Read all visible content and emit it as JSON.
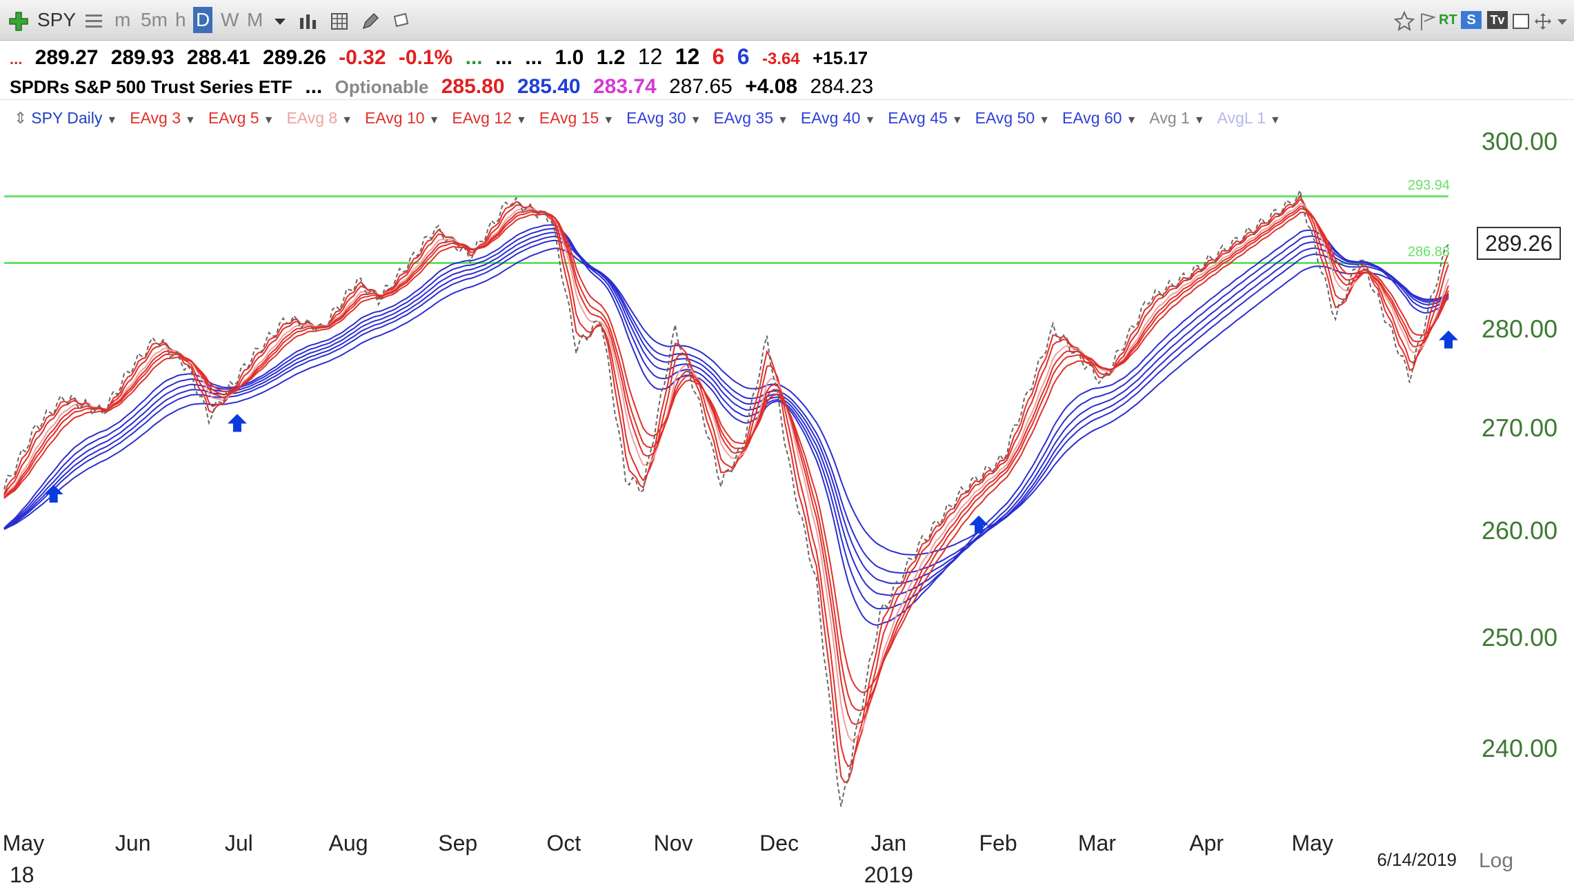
{
  "toolbar": {
    "symbol": "SPY",
    "intervals": [
      "m",
      "5m",
      "h",
      "D",
      "W",
      "M"
    ],
    "selected_interval": "D",
    "rt_label": "RT",
    "s_label": "S",
    "tv_label": "Tv"
  },
  "quote": {
    "lead": "...",
    "open": "289.27",
    "high": "289.93",
    "low": "288.41",
    "close": "289.26",
    "change": "-0.32",
    "change_pct": "-0.1%",
    "dots1": "...",
    "dots2": "...",
    "dots3": "...",
    "v1": "1.0",
    "v2": "1.2",
    "v3": "12",
    "v4": "12",
    "v5": "6",
    "v6": "6",
    "v7": "-3.64",
    "v8": "+15.17"
  },
  "info": {
    "name": "SPDRs S&P 500 Trust Series ETF",
    "dots": "...",
    "optionable": "Optionable",
    "p1": "285.80",
    "p2": "285.40",
    "p3": "283.74",
    "p4": "287.65",
    "p5": "+4.08",
    "p6": "284.23"
  },
  "indicators": [
    {
      "label": "SPY Daily",
      "color": "#1f3fbf"
    },
    {
      "label": "EAvg 3",
      "color": "#e0302a"
    },
    {
      "label": "EAvg 5",
      "color": "#e0302a"
    },
    {
      "label": "EAvg 8",
      "color": "#f0a0a0"
    },
    {
      "label": "EAvg 10",
      "color": "#e0302a"
    },
    {
      "label": "EAvg 12",
      "color": "#e0302a"
    },
    {
      "label": "EAvg 15",
      "color": "#e0302a"
    },
    {
      "label": "EAvg 30",
      "color": "#2f3fd8"
    },
    {
      "label": "EAvg 35",
      "color": "#2f3fd8"
    },
    {
      "label": "EAvg 40",
      "color": "#2f3fd8"
    },
    {
      "label": "EAvg 45",
      "color": "#2f3fd8"
    },
    {
      "label": "EAvg 50",
      "color": "#2f3fd8"
    },
    {
      "label": "EAvg 60",
      "color": "#2f3fd8"
    },
    {
      "label": "Avg 1",
      "color": "#888888"
    },
    {
      "label": "AvgL 1",
      "color": "#b8b8e8"
    }
  ],
  "chart_labels": {
    "current_price": "289.26",
    "level_high": "293.94",
    "level_low": "286.83",
    "date": "6/14/2019",
    "log": "Log",
    "year": "2019",
    "prev_year": "18"
  },
  "colors": {
    "price": "#666666",
    "fast": "#e0302a",
    "slow": "#2a2ed0",
    "level": "#66e066",
    "axis": "#3d7a32",
    "arrow": "#0a3ae0"
  },
  "chart_data": {
    "type": "line",
    "title": "SPY Daily",
    "y_scale": "log",
    "ylim": [
      234,
      303
    ],
    "y_ticks": [
      300,
      280,
      270,
      260,
      250,
      240
    ],
    "x_ticks": [
      "May",
      "Jun",
      "Jul",
      "Aug",
      "Sep",
      "Oct",
      "Nov",
      "Dec",
      "Jan",
      "Feb",
      "Mar",
      "Apr",
      "May"
    ],
    "x_start": "2018-05-01",
    "x_end": "2019-06-14",
    "levels": [
      293.94,
      286.83
    ],
    "buy_arrows": [
      {
        "date": "2018-05-15",
        "price": 266
      },
      {
        "date": "2018-07-06",
        "price": 273
      },
      {
        "date": "2019-02-01",
        "price": 263
      },
      {
        "date": "2019-06-14",
        "price": 281.5
      }
    ],
    "series": [
      {
        "name": "SPY",
        "x": [
          "2018-05-01",
          "2018-05-10",
          "2018-05-18",
          "2018-05-29",
          "2018-06-06",
          "2018-06-13",
          "2018-06-22",
          "2018-06-28",
          "2018-07-10",
          "2018-07-20",
          "2018-07-30",
          "2018-08-09",
          "2018-08-15",
          "2018-08-24",
          "2018-08-31",
          "2018-09-10",
          "2018-09-21",
          "2018-10-03",
          "2018-10-10",
          "2018-10-17",
          "2018-10-24",
          "2018-10-29",
          "2018-11-07",
          "2018-11-15",
          "2018-11-20",
          "2018-11-26",
          "2018-12-03",
          "2018-12-10",
          "2018-12-17",
          "2018-12-24",
          "2019-01-04",
          "2019-01-15",
          "2019-01-28",
          "2019-02-08",
          "2019-02-22",
          "2019-03-08",
          "2019-03-21",
          "2019-04-01",
          "2019-04-18",
          "2019-05-03",
          "2019-05-13",
          "2019-05-20",
          "2019-06-03",
          "2019-06-14"
        ],
        "y": [
          264,
          270,
          273,
          271.5,
          276,
          279,
          276,
          271,
          277,
          281,
          280,
          285,
          283,
          287,
          290.5,
          287.5,
          293.5,
          291.5,
          278,
          281,
          265,
          264,
          280,
          271,
          264.5,
          268,
          279,
          265,
          255,
          234.5,
          252,
          258.5,
          264,
          267,
          280,
          274.5,
          283,
          285.5,
          290,
          294,
          281,
          287.5,
          275,
          289.26
        ]
      }
    ]
  }
}
